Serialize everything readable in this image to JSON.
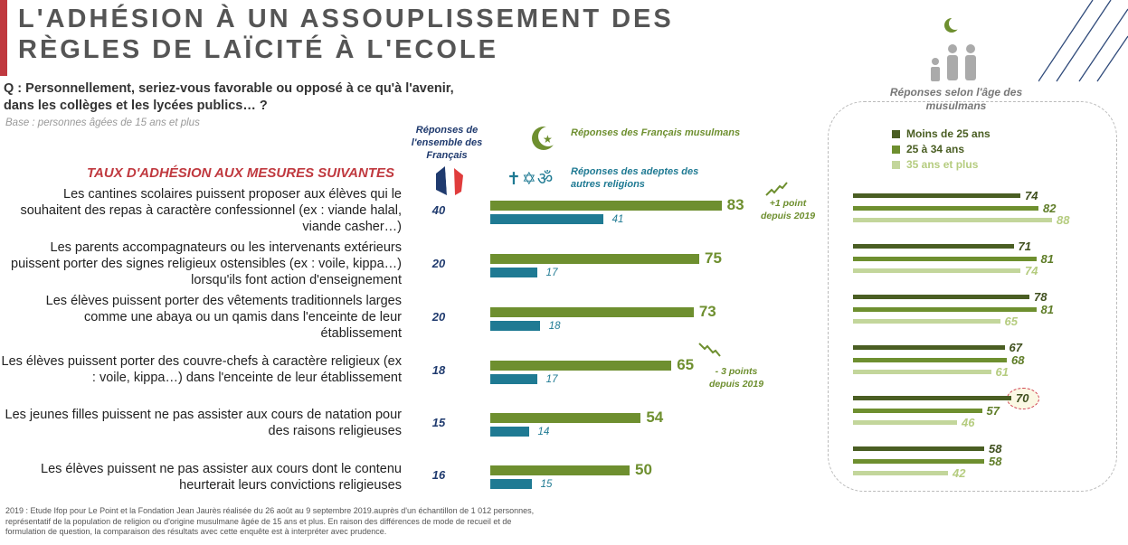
{
  "title": "L'ADHÉSION À UN ASSOUPLISSEMENT DES RÈGLES DE LAÏCITÉ À L'ECOLE",
  "question": "Q : Personnellement, seriez-vous favorable ou opposé à ce qu'à l'avenir, dans les collèges et les lycées publics… ?",
  "base": "Base : personnes âgées de 15 ans et plus",
  "subtitle": "TAUX D'ADHÉSION AUX MESURES SUIVANTES",
  "legend": {
    "all_french": "Réponses de l'ensemble des Français",
    "muslims": "Réponses des Français musulmans",
    "others": "Réponses des adeptes des autres religions",
    "age_title": "Réponses selon l'âge des musulmans",
    "icons": [
      "france-flag-map-icon",
      "crescent-star-icon",
      "cross-icon",
      "star-of-david-icon",
      "om-icon",
      "family-icon"
    ]
  },
  "colors": {
    "muslims": "#6e8f2f",
    "others": "#1f7a93",
    "under25": "#4a5e23",
    "age25_34": "#6e8f2f",
    "age35plus": "#c3d69b",
    "title_red": "#c0393f"
  },
  "chart_data": [
    {
      "type": "bar",
      "orientation": "horizontal",
      "categories": [
        "Les cantines scolaires puissent proposer aux élèves qui le souhaitent des repas à caractère confessionnel (ex : viande halal, viande casher…)",
        "Les parents accompagnateurs ou les intervenants extérieurs puissent porter des signes religieux ostensibles (ex : voile, kippa…) lorsqu'ils font action d'enseignement",
        "Les élèves puissent porter des vêtements traditionnels larges comme une abaya ou un qamis dans l'enceinte de leur établissement",
        "Les élèves puissent porter des couvre-chefs à caractère religieux (ex : voile, kippa…) dans l'enceinte de leur établissement",
        "Les jeunes filles puissent ne pas assister aux cours de natation pour des raisons religieuses",
        "Les élèves puissent ne pas assister aux cours dont le contenu heurterait leurs convictions religieuses"
      ],
      "series": [
        {
          "name": "Réponses de l'ensemble des Français",
          "values": [
            40,
            20,
            20,
            18,
            15,
            16
          ]
        },
        {
          "name": "Réponses des Français musulmans",
          "values": [
            83,
            75,
            73,
            65,
            54,
            50
          ]
        },
        {
          "name": "Réponses des adeptes des autres religions",
          "values": [
            41,
            17,
            18,
            17,
            14,
            15
          ]
        }
      ],
      "annotations": [
        {
          "row": 0,
          "text": "+1 point depuis 2019",
          "trend": "up"
        },
        {
          "row": 3,
          "text": "- 3 points depuis 2019",
          "trend": "down"
        }
      ]
    },
    {
      "type": "bar",
      "orientation": "horizontal",
      "title": "Réponses selon l'âge des musulmans",
      "series": [
        {
          "name": "Moins de 25 ans",
          "values": [
            74,
            71,
            78,
            67,
            70,
            58
          ]
        },
        {
          "name": "25 à 34 ans",
          "values": [
            82,
            81,
            81,
            68,
            57,
            58
          ]
        },
        {
          "name": "35 ans et plus",
          "values": [
            88,
            74,
            65,
            61,
            46,
            42
          ]
        }
      ],
      "highlight": {
        "row": 4,
        "series": 0
      }
    }
  ],
  "footer": "2019 : Etude Ifop pour Le Point et la Fondation Jean Jaurès réalisée du 26 août au 9 septembre 2019.auprès d'un échantillon de 1 012 personnes, représentatif de la population de religion ou d'origine musulmane âgée de 15 ans et plus. En raison des différences de mode de recueil et de formulation de question, la comparaison des résultats avec cette enquête est à interpréter avec prudence."
}
